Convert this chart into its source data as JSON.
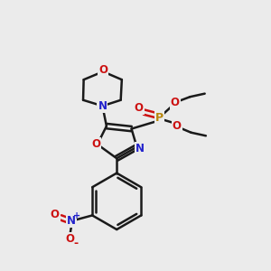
{
  "bg_color": "#ebebeb",
  "bond_color": "#1a1a1a",
  "N_color": "#2222cc",
  "O_color": "#cc1111",
  "P_color": "#b8860b",
  "figsize": [
    3.0,
    3.0
  ],
  "dpi": 100,
  "xlim": [
    0,
    10
  ],
  "ylim": [
    0,
    10
  ]
}
